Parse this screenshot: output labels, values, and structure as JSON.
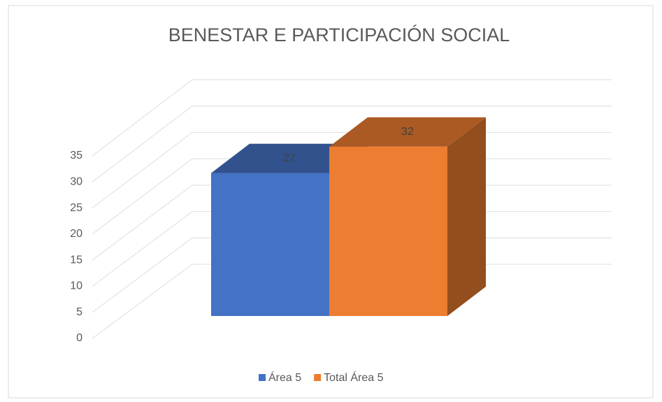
{
  "chart_data": {
    "type": "bar3d",
    "title": "BENESTAR E PARTICIPACIÓN SOCIAL",
    "categories": [
      null
    ],
    "series": [
      {
        "name": "Área 5",
        "color": "#4472c4",
        "values": [
          27
        ]
      },
      {
        "name": "Total Área 5",
        "color": "#ed7d31",
        "values": [
          32
        ]
      }
    ],
    "ylim": [
      0,
      35
    ],
    "yticks": [
      0,
      5,
      10,
      15,
      20,
      25,
      30,
      35
    ],
    "grid": true,
    "legend": "bottom"
  }
}
